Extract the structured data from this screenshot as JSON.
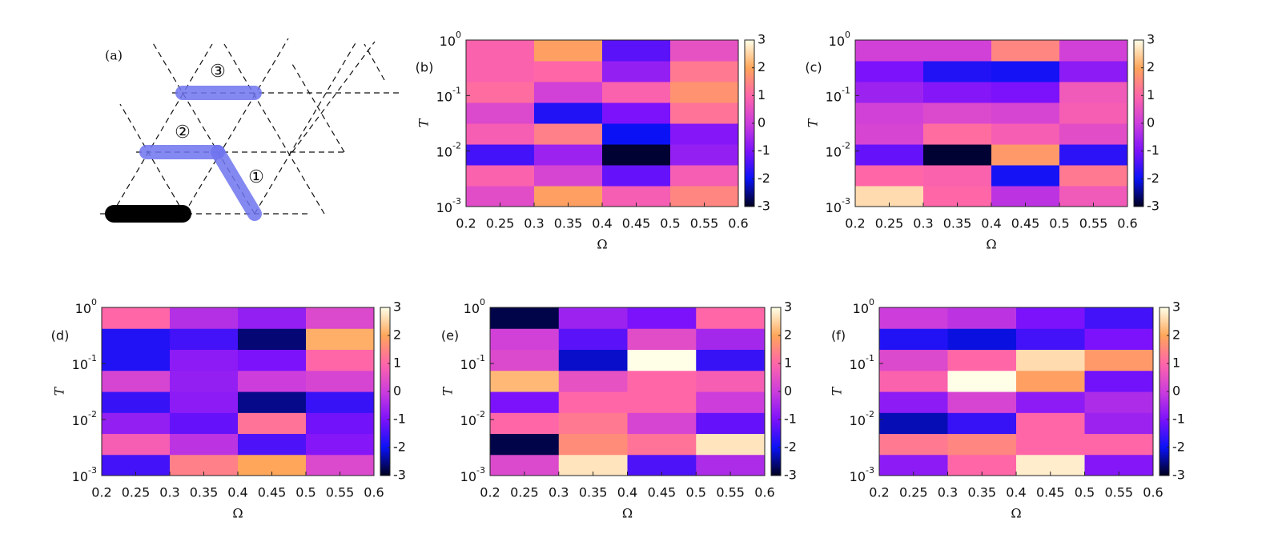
{
  "diagram": {
    "label": "(a)",
    "markers": [
      "①",
      "②",
      "③"
    ]
  },
  "colormap": [
    "#00001e",
    "#0a12f5",
    "#7c12fb",
    "#cc3ddc",
    "#ff66a8",
    "#ffa65a",
    "#ffffe8"
  ],
  "chart_data": [
    {
      "type": "heatmap",
      "label": "(b)",
      "xlabel": "Ω",
      "ylabel": "T",
      "x_edges": [
        0.2,
        0.3,
        0.4,
        0.5,
        0.6
      ],
      "y_edges": [
        0.001,
        0.00237,
        0.00562,
        0.0133,
        0.0316,
        0.075,
        0.178,
        0.422,
        1
      ],
      "values": [
        [
          0.4,
          1.9,
          0.8,
          1.5
        ],
        [
          0.9,
          0.2,
          -1.2,
          0.8
        ],
        [
          -1.5,
          -0.6,
          -2.9,
          -0.7
        ],
        [
          0.8,
          1.4,
          -2.0,
          -0.9
        ],
        [
          0.3,
          -1.8,
          -1.0,
          1.2
        ],
        [
          1.1,
          0.1,
          0.9,
          1.7
        ],
        [
          0.9,
          1.0,
          -0.7,
          1.3
        ],
        [
          0.9,
          1.9,
          -1.3,
          0.5
        ]
      ],
      "xlim": [
        0.2,
        0.6
      ],
      "ylim": [
        0.001,
        1
      ],
      "ylog": true,
      "xticks": [
        0.2,
        0.25,
        0.3,
        0.35,
        0.4,
        0.45,
        0.5,
        0.55,
        0.6
      ],
      "yticks": [
        {
          "value": 0.001,
          "label": "10",
          "exponent": "-3"
        },
        {
          "value": 0.01,
          "label": "10",
          "exponent": "-2"
        },
        {
          "value": 0.1,
          "label": "10",
          "exponent": "-1"
        },
        {
          "value": 1,
          "label": "10",
          "exponent": "0"
        }
      ],
      "clim": [
        -3,
        3
      ],
      "cticks": [
        -3,
        -2,
        -1,
        0,
        1,
        2,
        3
      ]
    },
    {
      "type": "heatmap",
      "label": "(c)",
      "xlabel": "Ω",
      "ylabel": "T",
      "x_edges": [
        0.2,
        0.3,
        0.4,
        0.5,
        0.6
      ],
      "y_edges": [
        0.001,
        0.00237,
        0.00562,
        0.0133,
        0.0316,
        0.075,
        0.178,
        0.422,
        1
      ],
      "values": [
        [
          2.6,
          1.0,
          -0.2,
          0.7
        ],
        [
          1.0,
          0.9,
          -1.9,
          1.3
        ],
        [
          -1.2,
          -2.9,
          1.8,
          -1.7
        ],
        [
          0.2,
          1.1,
          0.8,
          0.4
        ],
        [
          0.1,
          0.3,
          0.2,
          0.8
        ],
        [
          -0.6,
          -0.9,
          -1.0,
          0.7
        ],
        [
          -1.0,
          -1.8,
          -1.9,
          -0.8
        ],
        [
          0.1,
          0.1,
          1.5,
          0.1
        ]
      ],
      "xlim": [
        0.2,
        0.6
      ],
      "ylim": [
        0.001,
        1
      ],
      "ylog": true,
      "xticks": [
        0.2,
        0.25,
        0.3,
        0.35,
        0.4,
        0.45,
        0.5,
        0.55,
        0.6
      ],
      "yticks": [
        {
          "value": 0.001,
          "label": "10",
          "exponent": "-3"
        },
        {
          "value": 0.01,
          "label": "10",
          "exponent": "-2"
        },
        {
          "value": 0.1,
          "label": "10",
          "exponent": "-1"
        },
        {
          "value": 1,
          "label": "10",
          "exponent": "0"
        }
      ],
      "clim": [
        -3,
        3
      ],
      "cticks": [
        -3,
        -2,
        -1,
        0,
        1,
        2,
        3
      ]
    },
    {
      "type": "heatmap",
      "label": "(d)",
      "xlabel": "Ω",
      "ylabel": "T",
      "x_edges": [
        0.2,
        0.3,
        0.4,
        0.5,
        0.6
      ],
      "y_edges": [
        0.001,
        0.00237,
        0.00562,
        0.0133,
        0.0316,
        0.075,
        0.178,
        0.422,
        1
      ],
      "values": [
        [
          -1.5,
          1.4,
          2.0,
          0.3
        ],
        [
          0.8,
          -0.2,
          -1.4,
          -0.9
        ],
        [
          -0.7,
          -1.2,
          1.2,
          -1.1
        ],
        [
          -1.6,
          -0.8,
          -2.5,
          -1.6
        ],
        [
          0.2,
          -0.7,
          0.0,
          0.2
        ],
        [
          -1.8,
          -0.8,
          -1.0,
          1.0
        ],
        [
          -1.8,
          -1.5,
          -2.6,
          2.1
        ],
        [
          1.0,
          -0.3,
          -0.7,
          0.3
        ]
      ],
      "xlim": [
        0.2,
        0.6
      ],
      "ylim": [
        0.001,
        1
      ],
      "ylog": true,
      "xticks": [
        0.2,
        0.25,
        0.3,
        0.35,
        0.4,
        0.45,
        0.5,
        0.55,
        0.6
      ],
      "yticks": [
        {
          "value": 0.001,
          "label": "10",
          "exponent": "-3"
        },
        {
          "value": 0.01,
          "label": "10",
          "exponent": "-2"
        },
        {
          "value": 0.1,
          "label": "10",
          "exponent": "-1"
        },
        {
          "value": 1,
          "label": "10",
          "exponent": "0"
        }
      ],
      "clim": [
        -3,
        3
      ],
      "cticks": [
        -3,
        -2,
        -1,
        0,
        1,
        2,
        3
      ]
    },
    {
      "type": "heatmap",
      "label": "(e)",
      "xlabel": "Ω",
      "ylabel": "T",
      "x_edges": [
        0.2,
        0.3,
        0.4,
        0.5,
        0.6
      ],
      "y_edges": [
        0.001,
        0.00237,
        0.00562,
        0.0133,
        0.0316,
        0.075,
        0.178,
        0.422,
        1
      ],
      "values": [
        [
          0.3,
          2.7,
          -1.4,
          -0.4
        ],
        [
          -2.8,
          1.6,
          1.2,
          2.7
        ],
        [
          1.0,
          1.3,
          0.2,
          -1.2
        ],
        [
          -1.0,
          1.0,
          1.0,
          0.0
        ],
        [
          2.2,
          0.5,
          1.0,
          0.8
        ],
        [
          0.3,
          -2.2,
          3.0,
          -1.6
        ],
        [
          0.1,
          -1.3,
          0.4,
          -0.5
        ],
        [
          -2.8,
          -0.6,
          -1.0,
          1.0
        ]
      ],
      "xlim": [
        0.2,
        0.6
      ],
      "ylim": [
        0.001,
        1
      ],
      "ylog": true,
      "xticks": [
        0.2,
        0.25,
        0.3,
        0.35,
        0.4,
        0.45,
        0.5,
        0.55,
        0.6
      ],
      "yticks": [
        {
          "value": 0.001,
          "label": "10",
          "exponent": "-3"
        },
        {
          "value": 0.01,
          "label": "10",
          "exponent": "-2"
        },
        {
          "value": 0.1,
          "label": "10",
          "exponent": "-1"
        },
        {
          "value": 1,
          "label": "10",
          "exponent": "0"
        }
      ],
      "clim": [
        -3,
        3
      ],
      "cticks": [
        -3,
        -2,
        -1,
        0,
        1,
        2,
        3
      ]
    },
    {
      "type": "heatmap",
      "label": "(f)",
      "xlabel": "Ω",
      "ylabel": "T",
      "x_edges": [
        0.2,
        0.3,
        0.4,
        0.5,
        0.6
      ],
      "y_edges": [
        0.001,
        0.00237,
        0.00562,
        0.0133,
        0.0316,
        0.075,
        0.178,
        0.422,
        1
      ],
      "values": [
        [
          -0.8,
          1.0,
          2.8,
          -0.9
        ],
        [
          1.3,
          1.5,
          1.0,
          1.0
        ],
        [
          -2.3,
          -1.6,
          1.0,
          -0.6
        ],
        [
          -0.8,
          0.2,
          -0.8,
          -0.4
        ],
        [
          0.9,
          3.0,
          1.9,
          -1.1
        ],
        [
          0.3,
          1.0,
          2.6,
          1.8
        ],
        [
          -1.8,
          -2.1,
          -1.5,
          -1.0
        ],
        [
          0.0,
          -0.2,
          -1.0,
          -1.5
        ]
      ],
      "xlim": [
        0.2,
        0.6
      ],
      "ylim": [
        0.001,
        1
      ],
      "ylog": true,
      "xticks": [
        0.2,
        0.25,
        0.3,
        0.35,
        0.4,
        0.45,
        0.5,
        0.55,
        0.6
      ],
      "yticks": [
        {
          "value": 0.001,
          "label": "10",
          "exponent": "-3"
        },
        {
          "value": 0.01,
          "label": "10",
          "exponent": "-2"
        },
        {
          "value": 0.1,
          "label": "10",
          "exponent": "-1"
        },
        {
          "value": 1,
          "label": "10",
          "exponent": "0"
        }
      ],
      "clim": [
        -3,
        3
      ],
      "cticks": [
        -3,
        -2,
        -1,
        0,
        1,
        2,
        3
      ]
    }
  ]
}
